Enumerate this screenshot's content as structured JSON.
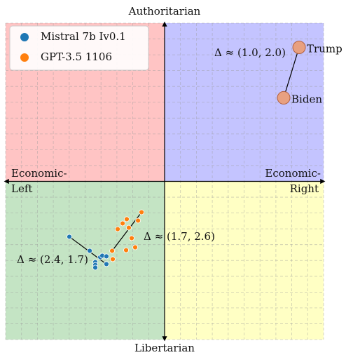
{
  "chart_data": {
    "type": "scatter",
    "top_label": "Authoritarian",
    "bottom_label": "Libertarian",
    "left_label": [
      "Economic-",
      "Left"
    ],
    "right_label": [
      "Economic-",
      "Right"
    ],
    "xlim": [
      -10,
      10
    ],
    "ylim": [
      -10,
      10
    ],
    "grid": true,
    "quadrant_colors": [
      "#ffc4c4",
      "#c4c4ff",
      "#c4e4c4",
      "#ffffc4"
    ],
    "series": [
      {
        "name": "Mistral 7b Iv0.1",
        "color": "#1f77b4",
        "x": [
          -5.99,
          -4.71,
          -4.36,
          -4.36,
          -4.36,
          -4.05,
          -3.92,
          -3.66,
          -3.66
        ],
        "y": [
          -3.5,
          -4.39,
          -5.1,
          -5.28,
          -5.45,
          -4.79,
          -4.7,
          -4.74,
          -5.23
        ]
      },
      {
        "name": "GPT-3.5 1106",
        "color": "#ff7f0e",
        "x": [
          -1.45,
          -1.67,
          -2.38,
          -2.64,
          -2.25,
          -2.95,
          -2.07,
          -1.85,
          -2.42,
          -3.3,
          -3.26
        ],
        "y": [
          -1.95,
          -2.48,
          -2.39,
          -2.66,
          -2.93,
          -3.02,
          -3.59,
          -4.17,
          -4.35,
          -4.39,
          -4.92
        ]
      }
    ],
    "people": [
      {
        "name": "Trump",
        "x": 8.46,
        "y": 8.47
      },
      {
        "name": "Biden",
        "x": 7.49,
        "y": 5.28
      }
    ],
    "annotations": [
      "Δ ≈ (1.0, 2.0)",
      "Δ ≈ (2.4, 1.7)",
      "Δ ≈ (1.7, 2.6)"
    ]
  }
}
